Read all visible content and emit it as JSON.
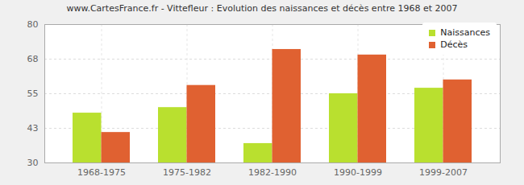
{
  "chart_data": {
    "type": "bar",
    "title": "www.CartesFrance.fr - Vittefleur : Evolution des naissances et décès entre 1968 et 2007",
    "categories": [
      "1968-1975",
      "1975-1982",
      "1982-1990",
      "1990-1999",
      "1999-2007"
    ],
    "series": [
      {
        "name": "Naissances",
        "color": "#b9e02f",
        "values": [
          48,
          50,
          37,
          55,
          57
        ]
      },
      {
        "name": "Décès",
        "color": "#e06131",
        "values": [
          41,
          58,
          71,
          69,
          60
        ]
      }
    ],
    "ylim": [
      30,
      80
    ],
    "yticks": [
      30,
      {
        "value": 42.5,
        "label": "43"
      },
      55,
      {
        "value": 67.5,
        "label": "68"
      },
      80
    ],
    "grid": true,
    "legend": "top-right"
  }
}
